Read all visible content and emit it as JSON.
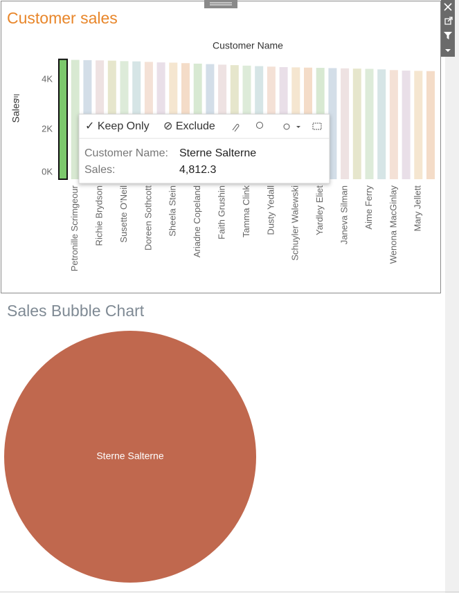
{
  "chart_data": [
    {
      "type": "bar",
      "title": "Customer sales",
      "x_label": "Customer Name",
      "y_label": "Sales",
      "categories": [
        null,
        "Petronille Scrimgeour",
        null,
        "Richie Brydson",
        null,
        "Susette O'Neil",
        null,
        "Doreen Sothcott",
        null,
        "Sheela Stein",
        null,
        "Ariadne Copeland",
        null,
        "Faith Grushin",
        null,
        "Tamma Clink",
        null,
        "Dusty Yedall",
        null,
        "Schuyler Walewski",
        null,
        "Yardley Eliet",
        null,
        "Janeva Silman",
        null,
        "Aime Ferry",
        null,
        "Wenona MacGinlay",
        null,
        "Mary Jellett",
        null
      ],
      "values": [
        4812.3,
        4790,
        4780,
        4770,
        4760,
        4740,
        4730,
        4710,
        4690,
        4680,
        4660,
        4640,
        4620,
        4600,
        4580,
        4560,
        4540,
        4520,
        4500,
        4490,
        4480,
        4470,
        4460,
        4450,
        4440,
        4430,
        4410,
        4380,
        4360,
        4350,
        4340
      ],
      "colors": [
        "#f4dcc8",
        "#d8e9d2",
        "#d3dee8",
        "#eee2e2",
        "#e6e6cc",
        "#ddebd9",
        "#d6e5e6",
        "#f4e1d6",
        "#e9dfe8",
        "#f5e6d0"
      ],
      "highlight_color": "#7cc86d",
      "highlight_index": 0,
      "ylim": [
        0,
        4900
      ],
      "yticks": [
        {
          "value": 0,
          "label": "0K"
        },
        {
          "value": 2000,
          "label": "2K"
        },
        {
          "value": 4000,
          "label": "4K"
        }
      ]
    },
    {
      "type": "bubble",
      "title": "Sales Bubble Chart",
      "categories": [
        "Sterne Salterne"
      ],
      "values": [
        4812.3
      ],
      "color": "#c0684e"
    }
  ],
  "tooltip": {
    "actions": [
      "✓ Keep Only",
      "⊘ Exclude"
    ],
    "fields": [
      {
        "label": "Customer Name:",
        "value": "Sterne Salterne"
      },
      {
        "label": "Sales:",
        "value": "4,812.3"
      }
    ]
  }
}
